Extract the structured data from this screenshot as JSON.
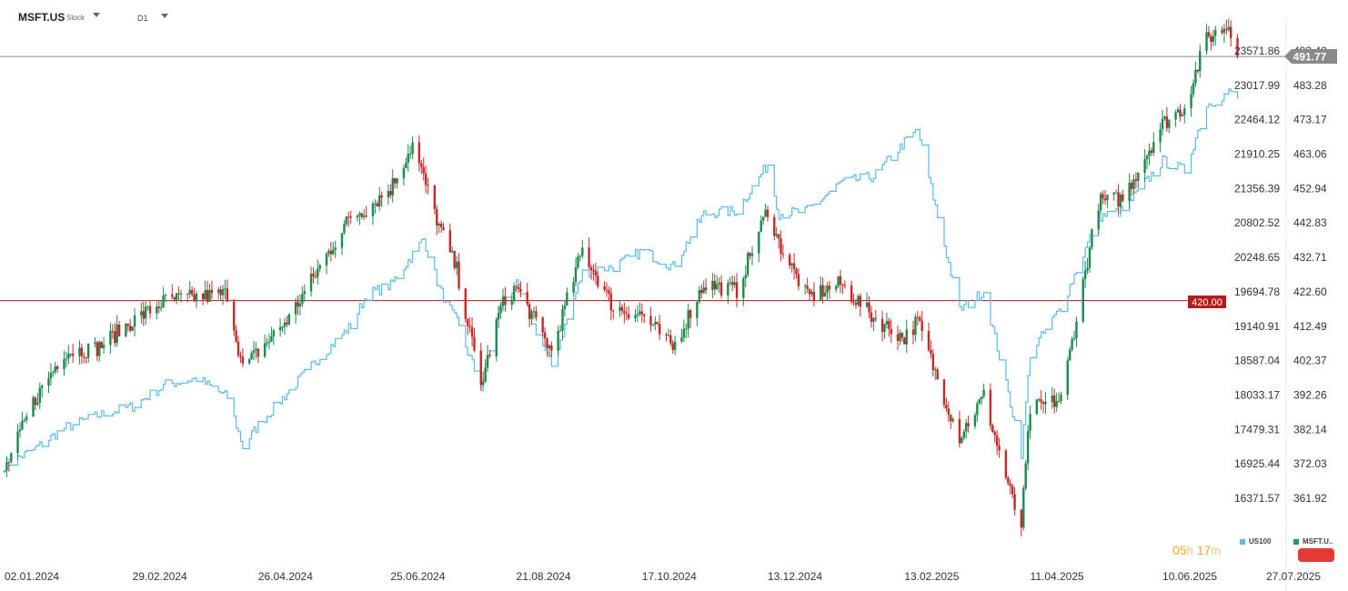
{
  "header": {
    "symbol": "MSFT.US",
    "symbol_type": "Stock",
    "timeframe": "D1"
  },
  "timer": {
    "hours": "05",
    "h_unit": "h",
    "minutes": "17",
    "m_unit": "m"
  },
  "legend": [
    {
      "name": "US100",
      "color": "#5bbbe8"
    },
    {
      "name": "MSFT.U..",
      "color": "#1b9e5a"
    }
  ],
  "colors": {
    "us100_line": "#5bbbe8",
    "bull": "#1b8a4e",
    "bear": "#c62828",
    "hline_price": "#8a8a8a",
    "hline_level": "#b71c1c",
    "price_tag": "#8a8a8a",
    "level_tag": "#b71c1c"
  },
  "chart_data": {
    "type": "line",
    "title": "",
    "x_labels": [
      "02.01.2024",
      "29.02.2024",
      "26.04.2024",
      "25.06.2024",
      "21.08.2024",
      "17.10.2024",
      "13.12.2024",
      "13.02.2025",
      "11.04.2025",
      "10.06.2025",
      "27.07.2025"
    ],
    "y_left_ticks": [
      "23571.86",
      "23017.99",
      "22464.12",
      "21910.25",
      "21356.39",
      "20802.52",
      "20248.65",
      "19694.78",
      "19140.91",
      "18587.04",
      "18033.17",
      "17479.31",
      "16925.44",
      "16371.57"
    ],
    "y_right_ticks": [
      "493.40",
      "483.28",
      "473.17",
      "463.06",
      "452.94",
      "442.83",
      "432.71",
      "422.60",
      "412.49",
      "402.37",
      "392.26",
      "382.14",
      "372.03",
      "361.92"
    ],
    "y_left_range": [
      16371.57,
      23571.86
    ],
    "y_right_range": [
      361.92,
      493.4
    ],
    "current_price": "491.77",
    "level_line": "420.00",
    "series": [
      {
        "name": "US100",
        "style": "line",
        "points": [
          [
            "02.01.2024",
            16900
          ],
          [
            "15.01.2024",
            17150
          ],
          [
            "29.01.2024",
            17500
          ],
          [
            "13.02.2024",
            17700
          ],
          [
            "29.02.2024",
            17850
          ],
          [
            "15.03.2024",
            18200
          ],
          [
            "29.03.2024",
            18300
          ],
          [
            "12.04.2024",
            18000
          ],
          [
            "19.04.2024",
            17200
          ],
          [
            "26.04.2024",
            17550
          ],
          [
            "10.05.2024",
            18100
          ],
          [
            "24.05.2024",
            18650
          ],
          [
            "07.06.2024",
            19150
          ],
          [
            "14.06.2024",
            19650
          ],
          [
            "25.06.2024",
            19800
          ],
          [
            "10.07.2024",
            20550
          ],
          [
            "17.07.2024",
            19750
          ],
          [
            "25.07.2024",
            19200
          ],
          [
            "05.08.2024",
            18150
          ],
          [
            "14.08.2024",
            19550
          ],
          [
            "21.08.2024",
            19800
          ],
          [
            "06.09.2024",
            18500
          ],
          [
            "20.09.2024",
            20000
          ],
          [
            "04.10.2024",
            20100
          ],
          [
            "17.10.2024",
            20350
          ],
          [
            "31.10.2024",
            20100
          ],
          [
            "14.11.2024",
            20950
          ],
          [
            "29.11.2024",
            21000
          ],
          [
            "13.12.2024",
            21750
          ],
          [
            "18.12.2024",
            20950
          ],
          [
            "31.12.2024",
            21000
          ],
          [
            "15.01.2025",
            21450
          ],
          [
            "30.01.2025",
            21550
          ],
          [
            "13.02.2025",
            22100
          ],
          [
            "19.02.2025",
            22300
          ],
          [
            "28.02.2025",
            20900
          ],
          [
            "10.03.2025",
            19400
          ],
          [
            "21.03.2025",
            19700
          ],
          [
            "04.04.2025",
            17600
          ],
          [
            "07.04.2025",
            17100
          ],
          [
            "11.04.2025",
            18700
          ],
          [
            "25.04.2025",
            19450
          ],
          [
            "12.05.2025",
            20900
          ],
          [
            "23.05.2025",
            21000
          ],
          [
            "10.06.2025",
            21800
          ],
          [
            "20.06.2025",
            21650
          ],
          [
            "30.06.2025",
            22700
          ],
          [
            "10.07.2025",
            22900
          ],
          [
            "14.07.2025",
            22800
          ]
        ]
      },
      {
        "name": "MSFT.US",
        "style": "candlestick",
        "points": [
          [
            "02.01.2024",
            370
          ],
          [
            "15.01.2024",
            390
          ],
          [
            "29.01.2024",
            405
          ],
          [
            "13.02.2024",
            406
          ],
          [
            "29.02.2024",
            414
          ],
          [
            "15.03.2024",
            420
          ],
          [
            "29.03.2024",
            421
          ],
          [
            "12.04.2024",
            422
          ],
          [
            "19.04.2024",
            400
          ],
          [
            "26.04.2024",
            405
          ],
          [
            "10.05.2024",
            415
          ],
          [
            "24.05.2024",
            430
          ],
          [
            "07.06.2024",
            445
          ],
          [
            "14.06.2024",
            447
          ],
          [
            "25.06.2024",
            453
          ],
          [
            "05.07.2024",
            466
          ],
          [
            "17.07.2024",
            442
          ],
          [
            "25.07.2024",
            429
          ],
          [
            "05.08.2024",
            395
          ],
          [
            "14.08.2024",
            418
          ],
          [
            "21.08.2024",
            424
          ],
          [
            "06.09.2024",
            405
          ],
          [
            "20.09.2024",
            435
          ],
          [
            "04.10.2024",
            418
          ],
          [
            "17.10.2024",
            416
          ],
          [
            "31.10.2024",
            406
          ],
          [
            "14.11.2024",
            425
          ],
          [
            "29.11.2024",
            423
          ],
          [
            "13.12.2024",
            447
          ],
          [
            "18.12.2024",
            437
          ],
          [
            "31.12.2024",
            421
          ],
          [
            "15.01.2025",
            425
          ],
          [
            "30.01.2025",
            415
          ],
          [
            "13.02.2025",
            409
          ],
          [
            "19.02.2025",
            414
          ],
          [
            "28.02.2025",
            397
          ],
          [
            "10.03.2025",
            380
          ],
          [
            "21.03.2025",
            392
          ],
          [
            "04.04.2025",
            359
          ],
          [
            "07.04.2025",
            354
          ],
          [
            "11.04.2025",
            388
          ],
          [
            "25.04.2025",
            391
          ],
          [
            "12.05.2025",
            449
          ],
          [
            "23.05.2025",
            450
          ],
          [
            "10.06.2025",
            472
          ],
          [
            "20.06.2025",
            477
          ],
          [
            "30.06.2025",
            497
          ],
          [
            "10.07.2025",
            501
          ],
          [
            "14.07.2025",
            491.77
          ]
        ]
      }
    ]
  }
}
